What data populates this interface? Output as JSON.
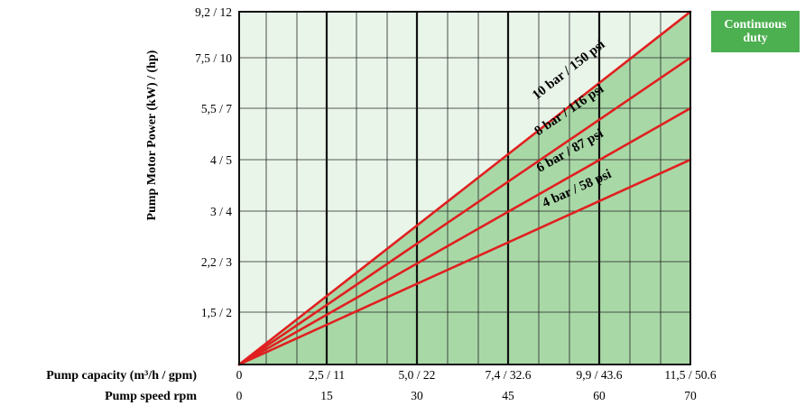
{
  "badge": {
    "text": "Continuous duty"
  },
  "chart_data": {
    "type": "line",
    "ylabel": "Pump Motor Power (kW) / (hp)",
    "xlabel_rows": [
      {
        "label": "Pump capacity (m³/h / gpm)",
        "ticks": [
          "0",
          "2,5 / 11",
          "5,0 / 22",
          "7,4 / 32.6",
          "9,9 / 43.6",
          "11,5 / 50.6"
        ]
      },
      {
        "label": "Pump speed rpm",
        "ticks": [
          "0",
          "15",
          "30",
          "45",
          "60",
          "70"
        ]
      }
    ],
    "x_values": [
      0,
      15,
      30,
      45,
      60,
      70
    ],
    "xlim": [
      0,
      70
    ],
    "y_levels": [
      {
        "label": "1,5 / 2",
        "level": 1
      },
      {
        "label": "2,2 / 3",
        "level": 2
      },
      {
        "label": "3 / 4",
        "level": 3
      },
      {
        "label": "4 / 5",
        "level": 4
      },
      {
        "label": "5,5 / 7",
        "level": 5
      },
      {
        "label": "7,5 / 10",
        "level": 6
      },
      {
        "label": "9,2 / 12",
        "level": 7
      }
    ],
    "ylim": [
      0,
      7
    ],
    "series": [
      {
        "name": "10 bar / 150 psi",
        "x": [
          0,
          70
        ],
        "y": [
          0,
          7
        ]
      },
      {
        "name": "8 bar / 116 psi",
        "x": [
          0,
          70
        ],
        "y": [
          0,
          6
        ]
      },
      {
        "name": "6 bar / 87 psi",
        "x": [
          0,
          70
        ],
        "y": [
          0,
          5
        ]
      },
      {
        "name": "4 bar / 58 psi",
        "x": [
          0,
          70
        ],
        "y": [
          0,
          4
        ]
      }
    ],
    "shaded_region": "below 10 bar / 150 psi line",
    "grid": true,
    "colors": {
      "line": "#e02020",
      "fill": "#a9d8a7",
      "background": "#eaf5e9",
      "badge": "#4caf50"
    }
  }
}
